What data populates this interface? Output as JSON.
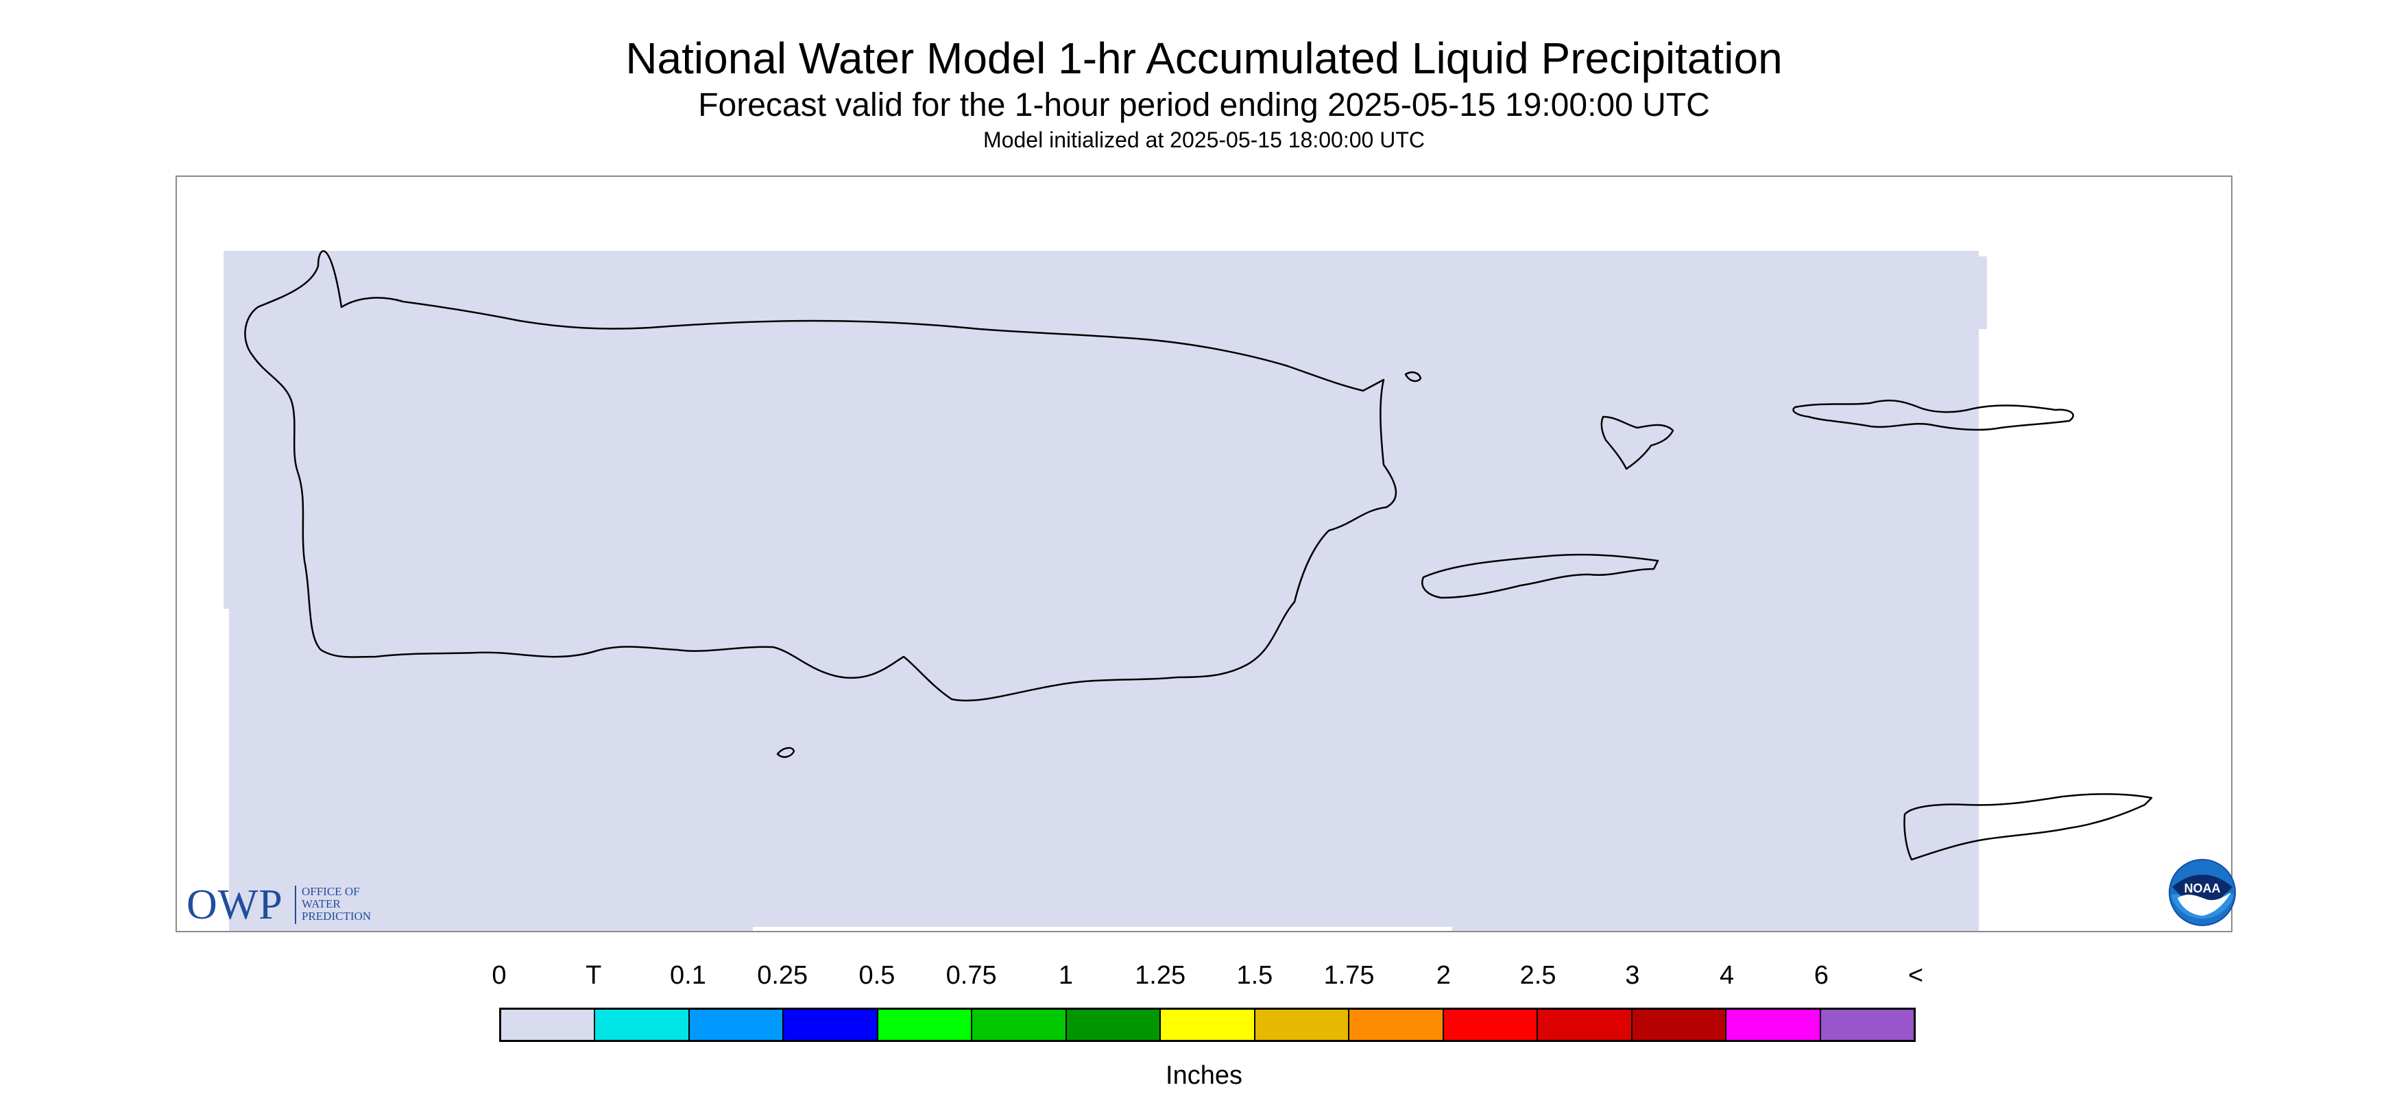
{
  "header": {
    "title": "National Water Model 1-hr Accumulated Liquid Precipitation",
    "subtitle": "Forecast valid for the 1-hour period ending 2025-05-15 19:00:00 UTC",
    "init_text": "Model initialized at 2025-05-15 18:00:00 UTC"
  },
  "map": {
    "region": "Puerto Rico and U.S. Virgin Islands",
    "field_color": "#d9dbee",
    "coast_color": "#000000"
  },
  "owp_logo": {
    "abbr": "OWP",
    "line1": "OFFICE OF",
    "line2": "WATER",
    "line3": "PREDICTION",
    "color": "#1f4e9c"
  },
  "noaa_logo": {
    "text": "NOAA",
    "icon": "noaa-seal-icon"
  },
  "legend": {
    "labels": [
      "0",
      "T",
      "0.1",
      "0.25",
      "0.5",
      "0.75",
      "1",
      "1.25",
      "1.5",
      "1.75",
      "2",
      "2.5",
      "3",
      "4",
      "6",
      "<"
    ],
    "colors": [
      "#d9dbee",
      "#00e5e5",
      "#0099ff",
      "#0000ff",
      "#00ff00",
      "#00c800",
      "#009600",
      "#ffff00",
      "#e6b800",
      "#ff8c00",
      "#ff0000",
      "#dd0000",
      "#b70000",
      "#ff00ff",
      "#9955cc"
    ],
    "units": "Inches"
  }
}
